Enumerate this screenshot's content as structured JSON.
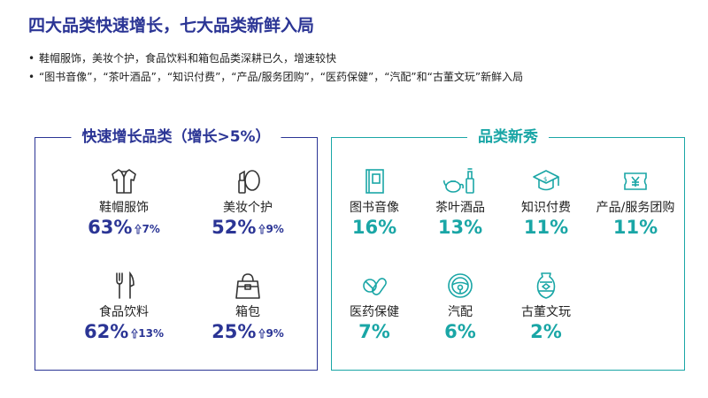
{
  "title": "四大品类快速增长，七大品类新鲜入局",
  "bullets": [
    "鞋帽服饰，美妆个护，食品饮料和箱包品类深耕已久，增速较快",
    "“图书音像”，“茶叶酒品”，“知识付费”，“产品/服务团购”，“医药保健”，“汽配”和“古董文玩”新鲜入局"
  ],
  "left_panel": {
    "title": "快速增长品类（增长>5%）",
    "items": [
      {
        "icon": "tshirt-icon",
        "name": "鞋帽服饰",
        "share": "63%",
        "growth": "7%"
      },
      {
        "icon": "cosmetics-mirror-icon",
        "name": "美妆个护",
        "share": "52%",
        "growth": "9%"
      },
      {
        "icon": "fork-knife-icon",
        "name": "食品饮料",
        "share": "62%",
        "growth": "13%"
      },
      {
        "icon": "handbag-icon",
        "name": "箱包",
        "share": "25%",
        "growth": "9%"
      }
    ]
  },
  "right_panel": {
    "title": "品类新秀",
    "items": [
      {
        "icon": "book-icon",
        "name": "图书音像",
        "share": "16%"
      },
      {
        "icon": "teapot-bottle-icon",
        "name": "茶叶酒品",
        "share": "13%"
      },
      {
        "icon": "graduation-cap-icon",
        "name": "知识付费",
        "share": "11%"
      },
      {
        "icon": "yen-ticket-icon",
        "name": "产品/服务团购",
        "share": "11%"
      },
      {
        "icon": "pills-icon",
        "name": "医药保健",
        "share": "7%"
      },
      {
        "icon": "steering-wheel-icon",
        "name": "汽配",
        "share": "6%"
      },
      {
        "icon": "vase-icon",
        "name": "古董文玩",
        "share": "2%"
      }
    ]
  },
  "colors": {
    "navy": "#2b3595",
    "teal": "#1aa6a6"
  }
}
